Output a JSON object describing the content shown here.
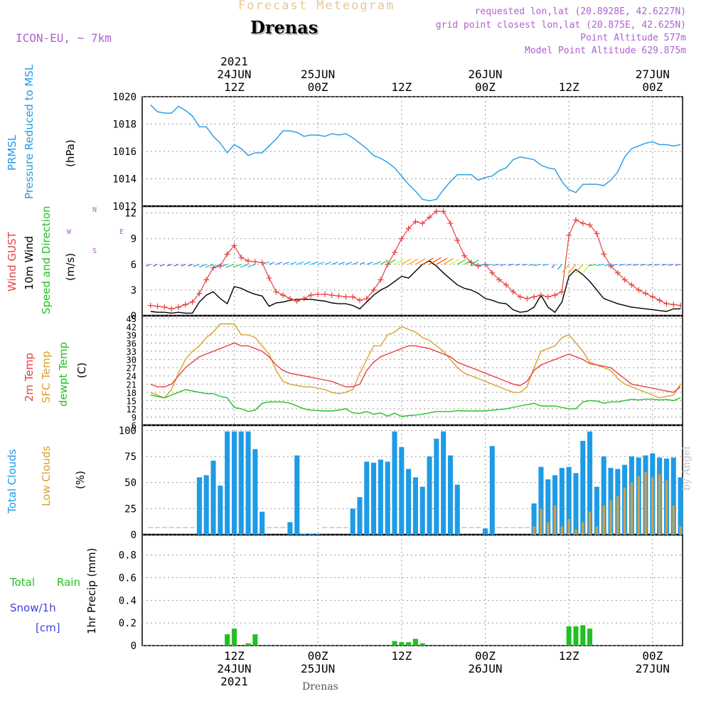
{
  "header": {
    "title": "Forecast Meteogram",
    "location": "Drenas",
    "model": "ICON-EU, ~ 7km",
    "requested": "requested lon,lat (20.8928E, 42.6227N)",
    "gridpoint": "grid point closest lon,lat (20.875E, 42.625N)",
    "point_alt": "Point Altitude 577m",
    "model_alt": "Model Point Altitude 629.875m",
    "credit": "by Angel",
    "footer_location": "Drenas"
  },
  "colors": {
    "pressure": "#1e9be6",
    "gust": "#e8403c",
    "wind": "#000000",
    "temp2m": "#e84040",
    "sfctemp": "#d9a02a",
    "dewpt": "#22c022",
    "total_clouds": "#1e9be6",
    "low_clouds": "#c8a050",
    "rain": "#22c022",
    "snow": "#4040e0",
    "meta": "#b060d0",
    "title": "#e8b878"
  },
  "time_axis": {
    "top_labels": [
      {
        "line1": "2021",
        "line2": "24JUN",
        "line3": "12Z",
        "hour": 12
      },
      {
        "line1": "",
        "line2": "25JUN",
        "line3": "00Z",
        "hour": 24
      },
      {
        "line1": "",
        "line2": "",
        "line3": "12Z",
        "hour": 36
      },
      {
        "line1": "",
        "line2": "26JUN",
        "line3": "00Z",
        "hour": 48
      },
      {
        "line1": "",
        "line2": "",
        "line3": "12Z",
        "hour": 60
      },
      {
        "line1": "",
        "line2": "27JUN",
        "line3": "00Z",
        "hour": 72
      }
    ],
    "bottom_labels": [
      {
        "line1": "12Z",
        "line2": "24JUN",
        "line3": "2021",
        "hour": 12
      },
      {
        "line1": "00Z",
        "line2": "25JUN",
        "line3": "",
        "hour": 24
      },
      {
        "line1": "12Z",
        "line2": "",
        "line3": "",
        "hour": 36
      },
      {
        "line1": "00Z",
        "line2": "26JUN",
        "line3": "",
        "hour": 48
      },
      {
        "line1": "12Z",
        "line2": "",
        "line3": "",
        "hour": 60
      },
      {
        "line1": "00Z",
        "line2": "27JUN",
        "line3": "",
        "hour": 72
      }
    ]
  },
  "panels": {
    "pressure": {
      "label1": "PRMSL",
      "label2": "Pressure Reduced to MSL",
      "unit": "(hPa)",
      "yticks": [
        "1012",
        "1014",
        "1016",
        "1018",
        "1020"
      ]
    },
    "wind": {
      "label1": "Wind GUST",
      "label2": "10m Wind",
      "label3": "Speed and Direction",
      "unit": "(m/s)",
      "compass_n": "N",
      "compass_s": "S",
      "compass_w": "W",
      "compass_e": "E",
      "yticks": [
        "0",
        "3",
        "6",
        "9",
        "12"
      ]
    },
    "temp": {
      "label1": "2m Temp",
      "label2": "SFC Temp",
      "label3": "dewpt Temp",
      "unit": "(C)",
      "yticks": [
        "6",
        "9",
        "12",
        "15",
        "18",
        "21",
        "24",
        "27",
        "30",
        "33",
        "36",
        "39",
        "42",
        "45"
      ]
    },
    "clouds": {
      "label1": "Total Clouds",
      "label2": "Low Clouds",
      "unit": "(%)",
      "yticks": [
        "0",
        "25",
        "50",
        "75",
        "100"
      ]
    },
    "precip": {
      "label1": "Total",
      "label1b": "Rain",
      "label2": "Snow/1h",
      "label3": "[cm]",
      "unit": "1hr Precip (mm)",
      "yticks": [
        "0",
        "0.2",
        "0.4",
        "0.6",
        "0.8"
      ]
    }
  },
  "chart_data": [
    {
      "type": "line",
      "title": "PRMSL Pressure Reduced to MSL",
      "ylabel": "(hPa)",
      "ylim": [
        1012,
        1020
      ],
      "x_hours": [
        0,
        1,
        2,
        3,
        4,
        5,
        6,
        7,
        8,
        9,
        10,
        11,
        12,
        13,
        14,
        15,
        16,
        17,
        18,
        19,
        20,
        21,
        22,
        23,
        24,
        25,
        26,
        27,
        28,
        29,
        30,
        31,
        32,
        33,
        34,
        35,
        36,
        37,
        38,
        39,
        40,
        41,
        42,
        43,
        44,
        45,
        46,
        47,
        48,
        49,
        50,
        51,
        52,
        53,
        54,
        55,
        56,
        57,
        58,
        59,
        60,
        61,
        62,
        63,
        64,
        65,
        66,
        67,
        68,
        69,
        70,
        71,
        72,
        73,
        74,
        75,
        76
      ],
      "series": [
        {
          "name": "PRMSL",
          "values": [
            1019.4,
            1018.9,
            1018.8,
            1018.8,
            1019.3,
            1019.0,
            1018.6,
            1017.8,
            1017.8,
            1017.1,
            1016.6,
            1015.9,
            1016.5,
            1016.2,
            1015.7,
            1015.9,
            1015.9,
            1016.4,
            1016.9,
            1017.5,
            1017.5,
            1017.4,
            1017.1,
            1017.2,
            1017.2,
            1017.1,
            1017.3,
            1017.2,
            1017.3,
            1017.0,
            1016.6,
            1016.2,
            1015.7,
            1015.5,
            1015.2,
            1014.8,
            1014.2,
            1013.6,
            1013.1,
            1012.5,
            1012.4,
            1012.5,
            1013.2,
            1013.8,
            1014.3,
            1014.3,
            1014.3,
            1013.9,
            1014.1,
            1014.2,
            1014.6,
            1014.8,
            1015.4,
            1015.6,
            1015.5,
            1015.4,
            1015.0,
            1014.8,
            1014.7,
            1013.8,
            1013.2,
            1013.0,
            1013.6,
            1013.6,
            1013.6,
            1013.5,
            1013.9,
            1014.5,
            1015.6,
            1016.2,
            1016.4,
            1016.6,
            1016.7,
            1016.5,
            1016.5,
            1016.4,
            1016.5
          ]
        }
      ]
    },
    {
      "type": "line",
      "title": "Wind GUST / 10m Wind",
      "ylabel": "(m/s)",
      "ylim": [
        0,
        12.8
      ],
      "x_hours": [
        0,
        1,
        2,
        3,
        4,
        5,
        6,
        7,
        8,
        9,
        10,
        11,
        12,
        13,
        14,
        15,
        16,
        17,
        18,
        19,
        20,
        21,
        22,
        23,
        24,
        25,
        26,
        27,
        28,
        29,
        30,
        31,
        32,
        33,
        34,
        35,
        36,
        37,
        38,
        39,
        40,
        41,
        42,
        43,
        44,
        45,
        46,
        47,
        48,
        49,
        50,
        51,
        52,
        53,
        54,
        55,
        56,
        57,
        58,
        59,
        60,
        61,
        62,
        63,
        64,
        65,
        66,
        67,
        68,
        69,
        70,
        71,
        72,
        73,
        74,
        75,
        76
      ],
      "series": [
        {
          "name": "Wind GUST",
          "values": [
            1.2,
            1.1,
            1.0,
            0.8,
            1.0,
            1.3,
            1.6,
            2.6,
            4.2,
            5.6,
            5.8,
            7.2,
            8.2,
            6.8,
            6.4,
            6.3,
            6.2,
            4.4,
            2.8,
            2.4,
            2.0,
            1.7,
            2.0,
            2.4,
            2.5,
            2.5,
            2.4,
            2.3,
            2.2,
            2.2,
            1.8,
            2.0,
            3.0,
            4.2,
            6.0,
            7.4,
            9.0,
            10.2,
            11.0,
            10.8,
            11.5,
            12.2,
            12.2,
            10.8,
            8.8,
            7.0,
            6.2,
            5.8,
            6.0,
            5.0,
            4.2,
            3.6,
            2.8,
            2.2,
            2.0,
            2.2,
            2.4,
            2.2,
            2.4,
            2.8,
            9.4,
            11.2,
            10.8,
            10.6,
            9.6,
            7.2,
            5.8,
            5.0,
            4.2,
            3.6,
            3.0,
            2.6,
            2.2,
            1.8,
            1.4,
            1.3,
            1.2
          ]
        },
        {
          "name": "10m Wind",
          "values": [
            0.5,
            0.4,
            0.4,
            0.3,
            0.4,
            0.3,
            0.3,
            1.6,
            2.4,
            2.8,
            2.0,
            1.4,
            3.4,
            3.2,
            2.8,
            2.5,
            2.3,
            1.1,
            1.5,
            1.6,
            1.8,
            1.9,
            1.9,
            1.9,
            1.8,
            1.7,
            1.5,
            1.4,
            1.4,
            1.2,
            0.8,
            1.6,
            2.4,
            3.0,
            3.4,
            4.0,
            4.6,
            4.4,
            5.2,
            6.0,
            6.4,
            5.8,
            5.0,
            4.3,
            3.6,
            3.2,
            3.0,
            2.6,
            2.0,
            1.8,
            1.5,
            1.4,
            0.7,
            0.4,
            0.5,
            1.0,
            2.4,
            1.0,
            0.4,
            1.6,
            4.6,
            5.4,
            4.8,
            4.0,
            3.0,
            2.0,
            1.7,
            1.4,
            1.2,
            1.0,
            0.9,
            0.8,
            0.7,
            0.6,
            0.5,
            0.8,
            0.8
          ]
        }
      ]
    },
    {
      "type": "line",
      "title": "2m Temp / SFC Temp / dewpt Temp",
      "ylabel": "(C)",
      "ylim": [
        6,
        46
      ],
      "x_hours": [
        0,
        1,
        2,
        3,
        4,
        5,
        6,
        7,
        8,
        9,
        10,
        11,
        12,
        13,
        14,
        15,
        16,
        17,
        18,
        19,
        20,
        21,
        22,
        23,
        24,
        25,
        26,
        27,
        28,
        29,
        30,
        31,
        32,
        33,
        34,
        35,
        36,
        37,
        38,
        39,
        40,
        41,
        42,
        43,
        44,
        45,
        46,
        47,
        48,
        49,
        50,
        51,
        52,
        53,
        54,
        55,
        56,
        57,
        58,
        59,
        60,
        61,
        62,
        63,
        64,
        65,
        66,
        67,
        68,
        69,
        70,
        71,
        72,
        73,
        74,
        75,
        76
      ],
      "series": [
        {
          "name": "2m Temp",
          "values": [
            21,
            20,
            20,
            21,
            24,
            27,
            29,
            31,
            32,
            33,
            34,
            35,
            36,
            35,
            35,
            34,
            33,
            31,
            28,
            26,
            25,
            24.5,
            24,
            23.5,
            23,
            22.5,
            22,
            21,
            20,
            20,
            21,
            26,
            29,
            31,
            32,
            33,
            34,
            35,
            35,
            34.5,
            34,
            33,
            32,
            31,
            29,
            28,
            27,
            26,
            25,
            24,
            23,
            22,
            21,
            20.5,
            22,
            26,
            28,
            29,
            30,
            31,
            32,
            31,
            30,
            28.5,
            28,
            27.5,
            27,
            25,
            23,
            21,
            20.5,
            20,
            19.5,
            19,
            18.5,
            18,
            20
          ]
        },
        {
          "name": "SFC Temp",
          "values": [
            18,
            17,
            16,
            19,
            25,
            30,
            33,
            35,
            38,
            40,
            43,
            43,
            43,
            39,
            39,
            38,
            35,
            32,
            26,
            22,
            21,
            20.5,
            20,
            20,
            19.5,
            19,
            18,
            17.5,
            18,
            19,
            25,
            30,
            35,
            35,
            39,
            40,
            42,
            41,
            40,
            38,
            37,
            35,
            33,
            30,
            27,
            25,
            24,
            23,
            22,
            21,
            20,
            19,
            18,
            18,
            20,
            27,
            33,
            34,
            35,
            38,
            39,
            36,
            33,
            29,
            28,
            27,
            26,
            23,
            21,
            20,
            19,
            18,
            17,
            16,
            16.5,
            17,
            21
          ]
        },
        {
          "name": "dewpt Temp",
          "values": [
            17,
            16.5,
            16,
            17,
            18,
            19,
            18.5,
            18,
            17.5,
            17.5,
            16.5,
            16,
            12.5,
            12,
            11,
            11.5,
            14,
            14.5,
            14.5,
            14.5,
            14,
            13,
            12,
            11.5,
            11.3,
            11.2,
            11.2,
            11.5,
            12,
            10.5,
            10.3,
            11,
            10,
            10.5,
            9.3,
            10.4,
            9.2,
            9.5,
            9.7,
            10,
            10.5,
            11,
            11,
            11,
            11.3,
            11.2,
            11.2,
            11.2,
            11.2,
            11.5,
            11.7,
            12,
            12.5,
            13,
            13.5,
            14,
            13,
            13,
            13,
            12.5,
            12,
            12,
            14.5,
            15,
            14.8,
            14,
            14.5,
            14.5,
            15,
            15.5,
            15.2,
            15.5,
            15.5,
            15.2,
            15.4,
            15,
            16
          ]
        }
      ]
    },
    {
      "type": "bar",
      "title": "Total Clouds / Low Clouds",
      "ylabel": "(%)",
      "ylim": [
        0,
        105
      ],
      "x_hours": [
        0,
        1,
        2,
        3,
        4,
        5,
        6,
        7,
        8,
        9,
        10,
        11,
        12,
        13,
        14,
        15,
        16,
        17,
        18,
        19,
        20,
        21,
        22,
        23,
        24,
        25,
        26,
        27,
        28,
        29,
        30,
        31,
        32,
        33,
        34,
        35,
        36,
        37,
        38,
        39,
        40,
        41,
        42,
        43,
        44,
        45,
        46,
        47,
        48,
        49,
        50,
        51,
        52,
        53,
        54,
        55,
        56,
        57,
        58,
        59,
        60,
        61,
        62,
        63,
        64,
        65,
        66,
        67,
        68,
        69,
        70,
        71,
        72,
        73,
        74,
        75,
        76
      ],
      "series": [
        {
          "name": "Total Clouds",
          "values": [
            0,
            0,
            0,
            0,
            0,
            0,
            0,
            55,
            57,
            71,
            47,
            99,
            99,
            99,
            99,
            82,
            22,
            0,
            0,
            0,
            12,
            76,
            1,
            1,
            1,
            0,
            0,
            0,
            0,
            25,
            36,
            70,
            69,
            72,
            70,
            99,
            84,
            63,
            55,
            46,
            75,
            92,
            99,
            76,
            48,
            0,
            0,
            0,
            6,
            85,
            0,
            0,
            0,
            0,
            0,
            30,
            65,
            53,
            57,
            64,
            65,
            59,
            90,
            99,
            46,
            75,
            64,
            63,
            67,
            75,
            74,
            76,
            78,
            74,
            73,
            74,
            55
          ]
        },
        {
          "name": "Low Clouds",
          "values": [
            0,
            0,
            0,
            0,
            0,
            0,
            0,
            0,
            0,
            0,
            0,
            0,
            0,
            0,
            0,
            0,
            0,
            0,
            0,
            0,
            0,
            0,
            0,
            0,
            0,
            0,
            0,
            0,
            0,
            0,
            0,
            0,
            0,
            0,
            0,
            0,
            0,
            0,
            0,
            0,
            0,
            0,
            0,
            0,
            0,
            0,
            0,
            0,
            0,
            0,
            0,
            0,
            0,
            0,
            0,
            8,
            25,
            12,
            28,
            8,
            15,
            5,
            12,
            22,
            8,
            28,
            33,
            37,
            45,
            50,
            56,
            60,
            55,
            58,
            52,
            28,
            8
          ]
        }
      ]
    },
    {
      "type": "bar",
      "title": "1hr Precip",
      "ylabel": "1hr Precip (mm)",
      "ylim": [
        0,
        0.98
      ],
      "x_hours": [
        11,
        12,
        14,
        15,
        35,
        36,
        37,
        38,
        39,
        60,
        61,
        62,
        63
      ],
      "series": [
        {
          "name": "Total Rain",
          "values": [
            0.1,
            0.15,
            0.02,
            0.1,
            0.04,
            0.03,
            0.03,
            0.06,
            0.02,
            0.17,
            0.17,
            0.18,
            0.15
          ]
        }
      ]
    }
  ]
}
